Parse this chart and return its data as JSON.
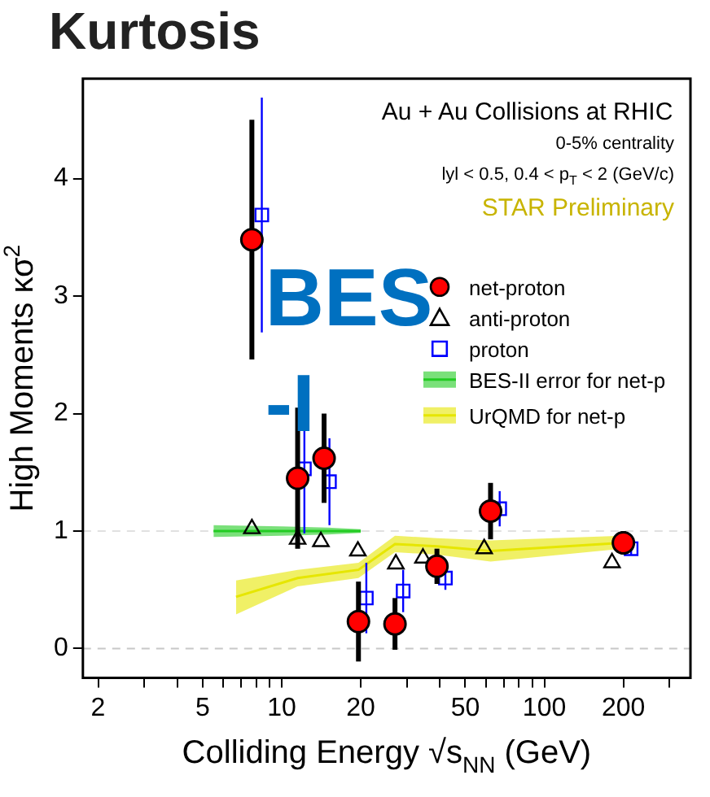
{
  "chart_data": {
    "type": "scatter",
    "title": "Kurtosis",
    "xlabel": "Colliding Energy √s$_{NN}$ (GeV)",
    "ylabel": "High Moments κσ$^{2}$",
    "log": "x",
    "xlim": [
      1.75,
      360
    ],
    "xticks": [
      2,
      {
        "value": 3,
        "label": null
      },
      {
        "value": 4,
        "label": null
      },
      5,
      {
        "value": 6,
        "label": null
      },
      {
        "value": 7,
        "label": null
      },
      {
        "value": 8,
        "label": null
      },
      {
        "value": 9,
        "label": null
      },
      10,
      20,
      {
        "value": 30,
        "label": null
      },
      {
        "value": 40,
        "label": null
      },
      50,
      {
        "value": 60,
        "label": null
      },
      {
        "value": 70,
        "label": null
      },
      {
        "value": 80,
        "label": null
      },
      {
        "value": 90,
        "label": null
      },
      100,
      200,
      {
        "value": 300,
        "label": null
      }
    ],
    "ylim": [
      -0.25,
      4.85
    ],
    "yticks": [
      0,
      1,
      2,
      3,
      4
    ],
    "grid": false,
    "legend": "right",
    "ref_lines": [
      {
        "axis": "y",
        "value": 0,
        "color": "#c8c8c8",
        "line_style": "dashed"
      },
      {
        "axis": "y",
        "value": 1,
        "color": "#e0e0e0",
        "line_style": "dashed"
      }
    ],
    "annotations": [
      "Au + Au Collisions at RHIC",
      "0-5% centrality",
      "lyl < 0.5, 0.4 < p$_{T}$ < 2 (GeV/c)",
      "STAR Preliminary",
      "BES",
      "-I"
    ],
    "series": [
      {
        "name": "net-proton",
        "marker": "circle",
        "color": "#ff0000",
        "x": [
          7.7,
          11.5,
          14.5,
          19.6,
          27,
          39,
          62.4,
          200
        ],
        "values": [
          3.48,
          1.45,
          1.62,
          0.23,
          0.21,
          0.7,
          1.17,
          0.9
        ],
        "errors": [
          1.02,
          0.6,
          0.38,
          0.34,
          0.22,
          0.15,
          0.24,
          0.1
        ]
      },
      {
        "name": "anti-proton",
        "marker": "triangle",
        "color": "#000000",
        "x": [
          7.7,
          11.5,
          14.1,
          19.5,
          27.2,
          34.5,
          59,
          181
        ],
        "values": [
          1.02,
          0.93,
          0.91,
          0.83,
          0.72,
          0.77,
          0.85,
          0.73
        ]
      },
      {
        "name": "proton",
        "marker": "square",
        "color": "#0000ff",
        "x": [
          8.4,
          12.2,
          15.2,
          21,
          29,
          42,
          67.6,
          214
        ],
        "values": [
          3.69,
          1.53,
          1.42,
          0.43,
          0.49,
          0.6,
          1.19,
          0.85
        ],
        "errors": [
          1.0,
          0.55,
          0.37,
          0.3,
          0.18,
          0.1,
          0.15,
          0.05
        ]
      },
      {
        "name": "BES-II error for net-p",
        "type": "line",
        "marker": "none",
        "color": "#22cc22",
        "x": [
          5.5,
          10,
          15,
          20
        ],
        "values": [
          1.0,
          1.0,
          1.0,
          1.0
        ],
        "lower": [
          0.95,
          0.96,
          0.97,
          0.985
        ],
        "upper": [
          1.05,
          1.04,
          1.03,
          1.015
        ]
      },
      {
        "name": "UrQMD for net-p",
        "type": "line",
        "marker": "none",
        "color": "#e6e600",
        "x": [
          6.7,
          11.5,
          19.6,
          27,
          39,
          62.4,
          200
        ],
        "values": [
          0.44,
          0.6,
          0.67,
          0.89,
          0.87,
          0.83,
          0.9
        ],
        "lower": [
          0.29,
          0.53,
          0.6,
          0.82,
          0.8,
          0.74,
          0.85
        ],
        "upper": [
          0.58,
          0.67,
          0.73,
          0.96,
          0.94,
          0.92,
          0.96
        ]
      }
    ]
  }
}
